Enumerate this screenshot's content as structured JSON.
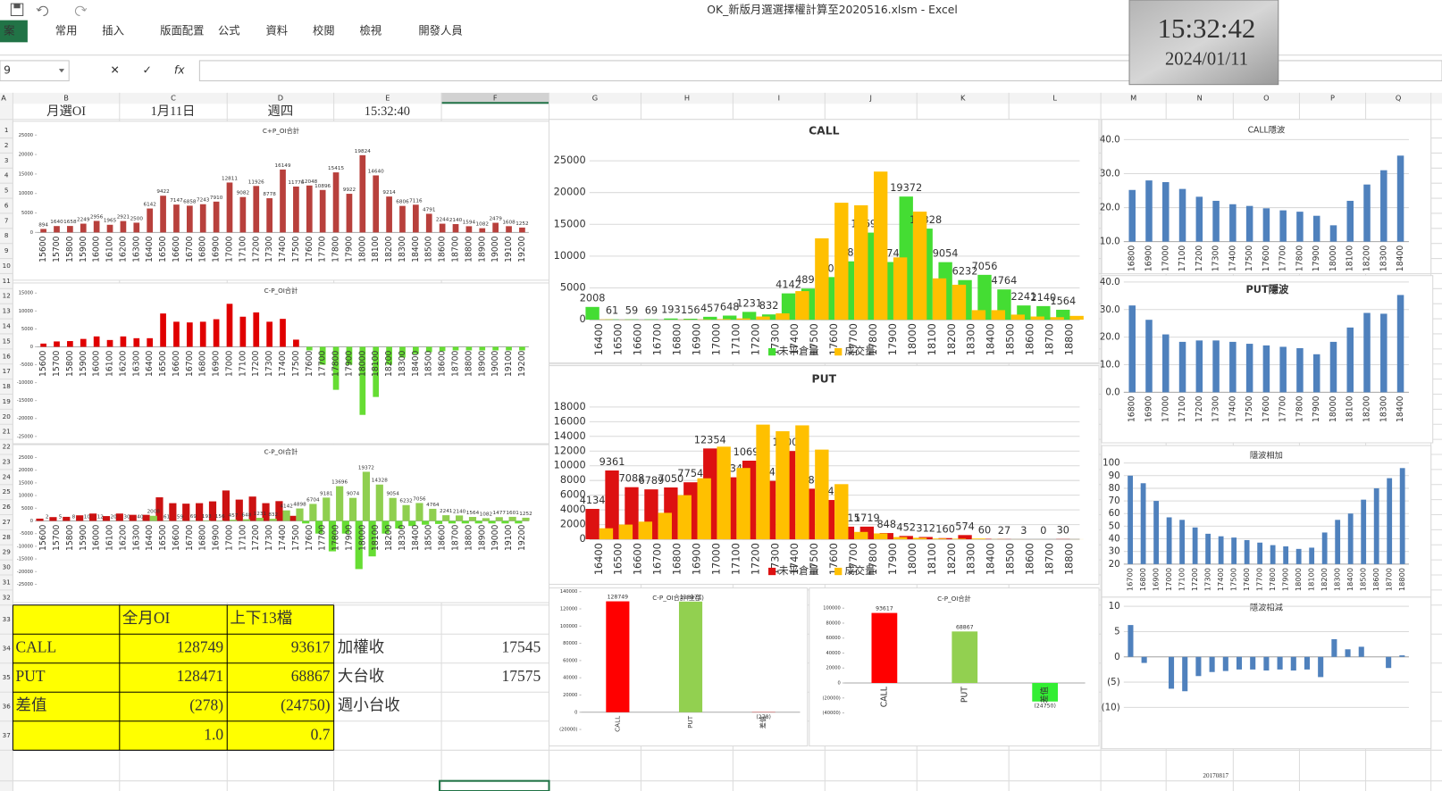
{
  "window": {
    "title": "OK_新版月選選擇權計算至2020516.xlsm - Excel",
    "clock_time": "15:32:42",
    "clock_date": "2024/01/11"
  },
  "ribbon": {
    "tabs": [
      "案",
      "常用",
      "插入",
      "版面配置",
      "公式",
      "資料",
      "校閱",
      "檢視",
      "開發人員"
    ]
  },
  "formula_bar": {
    "name_box": "9",
    "buttons": [
      "✕",
      "✓",
      "fx"
    ]
  },
  "sheet": {
    "columns": [
      "A",
      "B",
      "C",
      "D",
      "E",
      "F",
      "G",
      "H",
      "I",
      "J",
      "K",
      "L",
      "M",
      "N",
      "O",
      "P",
      "Q"
    ],
    "rows": [
      1,
      2,
      3,
      4,
      5,
      6,
      7,
      8,
      9,
      10,
      11,
      12,
      13,
      14,
      15,
      16,
      17,
      18,
      19,
      20,
      21,
      22,
      23,
      24,
      25,
      26,
      27,
      28,
      29,
      30,
      31,
      32,
      33,
      34,
      35,
      36,
      37
    ],
    "header_row": [
      "月選OI",
      "1月11日",
      "週四",
      "15:32:40"
    ],
    "summary_table": {
      "header": [
        "全月OI",
        "上下13檔"
      ],
      "rows": [
        [
          "CALL",
          "128749",
          "93617"
        ],
        [
          "PUT",
          "128471",
          "68867"
        ],
        [
          "差值",
          "(278)",
          "(24750)"
        ]
      ],
      "ratios": [
        "1.0",
        "0.7"
      ]
    },
    "side_labels": [
      [
        "加權收",
        "17545"
      ],
      [
        "大台收",
        "17575"
      ],
      [
        "週小台收"
      ]
    ],
    "footer_note": "20170817"
  },
  "chart_data": [
    {
      "type": "bar",
      "title": "C+P_OI合計",
      "grid": false,
      "categories": [
        15600,
        15700,
        15800,
        15900,
        16000,
        16100,
        16200,
        16300,
        16400,
        16500,
        16600,
        16700,
        16800,
        16900,
        17000,
        17100,
        17200,
        17300,
        17400,
        17500,
        17600,
        17700,
        17800,
        17900,
        18000,
        18100,
        18200,
        18300,
        18400,
        18500,
        18600,
        18700,
        18800,
        18900,
        19000,
        19100,
        19200
      ],
      "series": [
        {
          "color": "#b8403c",
          "labels": true,
          "values": [
            894,
            1640,
            1658,
            2249,
            2956,
            1965,
            2921,
            2500,
            6142,
            9422,
            7147,
            6858,
            7243,
            7910,
            12811,
            9082,
            11926,
            8778,
            16149,
            11776,
            12048,
            10896,
            15415,
            9922,
            19824,
            14640,
            9214,
            6806,
            7116,
            4791,
            2244,
            2140,
            1594,
            1082,
            2479,
            1608,
            1252
          ]
        }
      ],
      "ylim": [
        0,
        25000
      ],
      "yticks": [
        0,
        5000,
        10000,
        15000,
        20000,
        25000
      ]
    },
    {
      "type": "bar",
      "title": "C-P_OI合計",
      "grid": false,
      "categories": [
        15600,
        15700,
        15800,
        15900,
        16000,
        16100,
        16200,
        16300,
        16400,
        16500,
        16600,
        16700,
        16800,
        16900,
        17000,
        17100,
        17200,
        17300,
        17400,
        17500,
        17600,
        17700,
        17800,
        17900,
        18000,
        18100,
        18200,
        18300,
        18400,
        18500,
        18600,
        18700,
        18800,
        18900,
        19000,
        19100,
        19200
      ],
      "series": [
        {
          "color": "#e00000",
          "negative_color": "#66dd33",
          "values": [
            900,
            1500,
            1600,
            2200,
            2900,
            1900,
            2900,
            2400,
            2400,
            9300,
            7000,
            6800,
            7000,
            7700,
            12000,
            8400,
            9600,
            7000,
            7800,
            2000,
            -1000,
            -5000,
            -12000,
            -5000,
            -19000,
            -14000,
            -5000,
            -3000,
            -2000,
            -1500,
            -1200,
            -1000,
            -1000,
            -1000,
            -1000,
            -1000,
            -1000
          ]
        }
      ],
      "ylim": [
        -25000,
        15000
      ],
      "yticks": [
        -25000,
        -20000,
        -15000,
        -10000,
        -5000,
        0,
        5000,
        10000,
        15000
      ]
    },
    {
      "type": "bar",
      "title": "C-P_OI合計",
      "grid": false,
      "categories": [
        15600,
        15700,
        15800,
        15900,
        16000,
        16100,
        16200,
        16300,
        16400,
        16500,
        16600,
        16700,
        16800,
        16900,
        17000,
        17100,
        17200,
        17300,
        17400,
        17500,
        17600,
        17700,
        17800,
        17900,
        18000,
        18100,
        18200,
        18300,
        18400,
        18500,
        18600,
        18700,
        18800,
        18900,
        19000,
        19100,
        19200
      ],
      "series": [
        {
          "color": "#cc1111",
          "negative_color": "#66dd33",
          "values": [
            900,
            1500,
            1600,
            2200,
            2900,
            1900,
            2900,
            2400,
            2400,
            9300,
            7000,
            6800,
            7000,
            7700,
            12000,
            8400,
            9600,
            7000,
            7800,
            2000,
            -1000,
            -5000,
            -12000,
            -5000,
            -19000,
            -14000,
            -5000,
            -3000,
            -2000,
            -1500,
            -1200,
            -1000,
            -1000,
            -1000,
            -1000,
            -1000,
            -1000
          ]
        },
        {
          "color": "#8fcf4f",
          "labels": true,
          "values": [
            2,
            5,
            8,
            10,
            12,
            20,
            30,
            40,
            2008,
            61,
            59,
            69,
            193,
            156,
            457,
            648,
            1231,
            832,
            4142,
            4898,
            6704,
            9181,
            13696,
            9074,
            19372,
            14328,
            9054,
            6232,
            7056,
            4764,
            2241,
            2140,
            1564,
            1082,
            1477,
            1601,
            1252
          ]
        }
      ],
      "ylim": [
        -25000,
        25000
      ],
      "yticks": [
        -25000,
        -20000,
        -15000,
        -10000,
        -5000,
        0,
        5000,
        10000,
        15000,
        20000,
        25000
      ]
    },
    {
      "type": "bar",
      "title": "CALL",
      "grid": true,
      "legend": "bottom",
      "categories": [
        16400,
        16500,
        16600,
        16700,
        16800,
        16900,
        17000,
        17100,
        17200,
        17300,
        17400,
        17500,
        17600,
        17700,
        17800,
        17900,
        18000,
        18100,
        18200,
        18300,
        18400,
        18500,
        18600,
        18700,
        18800
      ],
      "series": [
        {
          "name": "未平倉量",
          "color": "#44dd33",
          "labels": true,
          "values": [
            2008,
            61,
            59,
            69,
            193,
            156,
            457,
            648,
            1231,
            832,
            4142,
            4898,
            6704,
            9181,
            13696,
            9074,
            19372,
            14328,
            9054,
            6232,
            7056,
            4764,
            2241,
            2140,
            1564
          ]
        },
        {
          "name": "成交量",
          "color": "#ffc000",
          "values": [
            50,
            20,
            10,
            10,
            30,
            50,
            100,
            200,
            500,
            1000,
            4500,
            12800,
            18400,
            18000,
            23300,
            9800,
            17000,
            6500,
            5500,
            1500,
            1500,
            800,
            500,
            400,
            600
          ]
        }
      ],
      "ylim": [
        0,
        25000
      ],
      "yticks": [
        0,
        5000,
        10000,
        15000,
        20000,
        25000
      ]
    },
    {
      "type": "bar",
      "title": "PUT",
      "grid": true,
      "legend": "bottom",
      "categories": [
        16400,
        16500,
        16600,
        16700,
        16800,
        16900,
        17000,
        17100,
        17200,
        17300,
        17400,
        17500,
        17600,
        17700,
        17800,
        17900,
        18000,
        18100,
        18200,
        18300,
        18400,
        18500,
        18600,
        18700,
        18800
      ],
      "series": [
        {
          "name": "未平倉量",
          "color": "#dd1111",
          "labels": true,
          "values": [
            4134,
            9361,
            7088,
            6789,
            7050,
            7754,
            12354,
            8434,
            10695,
            7946,
            12007,
            6881,
            5344,
            1715,
            1719,
            848,
            452,
            312,
            160,
            574,
            60,
            27,
            3,
            0,
            30
          ]
        },
        {
          "name": "成交量",
          "color": "#ffc000",
          "values": [
            1500,
            2000,
            2400,
            3600,
            6000,
            8300,
            12600,
            9700,
            15600,
            14700,
            15500,
            12200,
            7500,
            1000,
            800,
            300,
            200,
            100,
            80,
            100,
            20,
            10,
            5,
            2,
            10
          ]
        }
      ],
      "ylim": [
        0,
        18000
      ],
      "yticks": [
        0,
        2000,
        4000,
        6000,
        8000,
        10000,
        12000,
        14000,
        16000,
        18000
      ]
    },
    {
      "type": "bar",
      "title": "CALL隱波",
      "grid": true,
      "categories": [
        16800,
        16900,
        17000,
        17100,
        17200,
        17300,
        17400,
        17500,
        17600,
        17700,
        17800,
        17900,
        18000,
        18100,
        18200,
        18300,
        18400
      ],
      "series": [
        {
          "color": "#4f81bd",
          "values": [
            25.2,
            28.0,
            27.5,
            25.5,
            23.2,
            22.0,
            21.0,
            20.5,
            19.8,
            19.2,
            18.8,
            17.6,
            14.8,
            22.0,
            26.8,
            31.0,
            35.3
          ]
        }
      ],
      "ylim": [
        10,
        40
      ],
      "yticks": [
        {
          "value": 10,
          "label": "10.0"
        },
        {
          "value": 20,
          "label": "20.0"
        },
        {
          "value": 30,
          "label": "30.0"
        },
        {
          "value": 40,
          "label": "40.0"
        }
      ]
    },
    {
      "type": "bar",
      "title": "PUT隱波",
      "grid": true,
      "categories": [
        16800,
        16900,
        17000,
        17100,
        17200,
        17300,
        17400,
        17500,
        17600,
        17700,
        17800,
        17900,
        18000,
        18100,
        18200,
        18300,
        18400
      ],
      "series": [
        {
          "color": "#4f81bd",
          "values": [
            31.5,
            26.3,
            21.0,
            18.3,
            18.8,
            18.8,
            18.3,
            17.6,
            17.0,
            16.5,
            16.0,
            13.8,
            18.3,
            23.5,
            28.8,
            28.5,
            35.3
          ]
        }
      ],
      "ylim": [
        0,
        40
      ],
      "yticks": [
        {
          "value": 0,
          "label": "0.0"
        },
        {
          "value": 10,
          "label": "10.0"
        },
        {
          "value": 20,
          "label": "20.0"
        },
        {
          "value": 30,
          "label": "30.0"
        },
        {
          "value": 40,
          "label": "40.0"
        }
      ]
    },
    {
      "type": "bar",
      "title": "隱波相加",
      "grid": true,
      "categories": [
        16700,
        16800,
        16900,
        17000,
        17100,
        17200,
        17300,
        17400,
        17500,
        17600,
        17700,
        17800,
        17900,
        18000,
        18100,
        18200,
        18300,
        18400,
        18500,
        18600,
        18700,
        18800
      ],
      "series": [
        {
          "color": "#4f81bd",
          "values": [
            90,
            84,
            70,
            57,
            55,
            49,
            44,
            42,
            41,
            39,
            37,
            35,
            34,
            32,
            33,
            45,
            55,
            60,
            71,
            80,
            88,
            96
          ]
        }
      ],
      "ylim": [
        20,
        100
      ],
      "yticks": [
        20,
        30,
        40,
        50,
        60,
        70,
        80,
        90,
        100
      ]
    },
    {
      "type": "bar",
      "title": "隱波相減",
      "grid": true,
      "negative_label_color": "#c00000",
      "series": [
        {
          "color": "#4f81bd",
          "values": [
            6.3,
            -1.2,
            0,
            -6.3,
            -6.8,
            -3.8,
            -3.0,
            -2.8,
            -2.5,
            -2.5,
            -2.7,
            -2.5,
            -2.7,
            -2.5,
            -4.0,
            3.5,
            1.5,
            2.0,
            0,
            -2.2,
            0.3
          ]
        }
      ],
      "ylim": [
        -10,
        10
      ],
      "yticks": [
        {
          "value": -10,
          "label": "(10)"
        },
        {
          "value": -5,
          "label": "(5)"
        },
        0,
        5,
        10
      ]
    },
    {
      "type": "bar",
      "title": "C-P_OI合計(全部)",
      "grid": false,
      "negative_label_color": "#c00000",
      "categories": [
        "CALL",
        "PUT",
        "差值"
      ],
      "series": [
        {
          "colors": [
            "#ff0000",
            "#92d050",
            "#ff0000"
          ],
          "labels": true,
          "values": [
            128749,
            128471,
            -278
          ],
          "value_labels": [
            "128749",
            "128471",
            "(278)"
          ]
        }
      ],
      "ylim": [
        -20000,
        140000
      ],
      "yticks": [
        {
          "value": -20000,
          "label": "(20000)"
        },
        0,
        20000,
        40000,
        60000,
        80000,
        100000,
        120000,
        140000
      ]
    },
    {
      "type": "bar",
      "title": "C-P_OI合計",
      "grid": false,
      "negative_label_color": "#c00000",
      "categories": [
        "CALL",
        "PUT",
        "差值"
      ],
      "series": [
        {
          "colors": [
            "#ff0000",
            "#92d050",
            "#33ee33"
          ],
          "labels": true,
          "values": [
            93617,
            68867,
            -24750
          ],
          "value_labels": [
            "93617",
            "68867",
            "(24750)"
          ]
        }
      ],
      "ylim": [
        -40000,
        100000
      ],
      "yticks": [
        {
          "value": -40000,
          "label": "(40000)"
        },
        {
          "value": -20000,
          "label": "(20000)"
        },
        0,
        20000,
        40000,
        60000,
        80000,
        100000
      ]
    }
  ]
}
